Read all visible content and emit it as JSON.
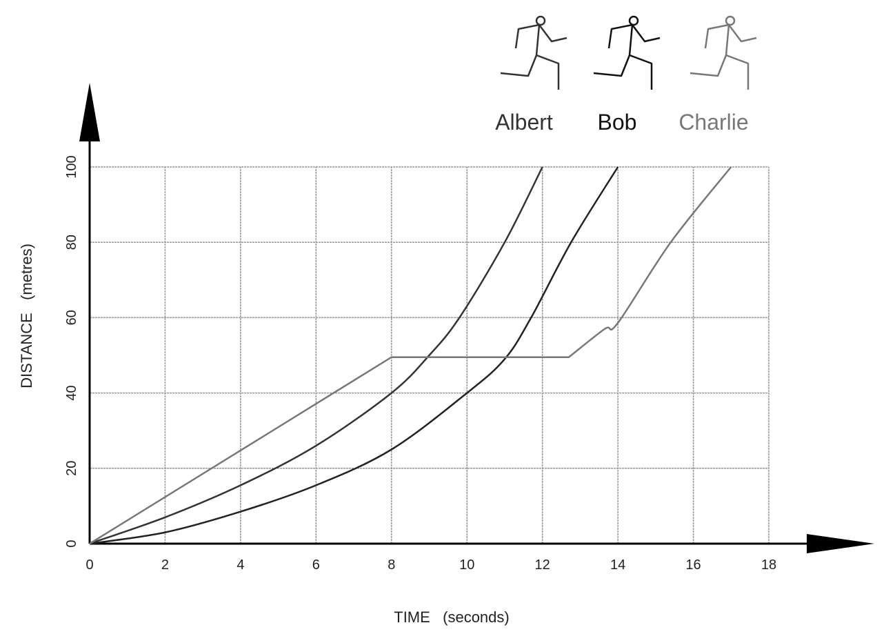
{
  "chart_data": {
    "type": "line",
    "title": "",
    "xlabel": "TIME   (seconds)",
    "ylabel": "DISTANCE   (metres)",
    "xlim": [
      0,
      18
    ],
    "ylim": [
      0,
      100
    ],
    "xticks": [
      "0",
      "2",
      "4",
      "6",
      "8",
      "10",
      "12",
      "14",
      "16",
      "18"
    ],
    "yticks": [
      "0",
      "20",
      "40",
      "60",
      "80",
      "100"
    ],
    "grid": true,
    "legend_position": "top-right",
    "series": [
      {
        "name": "Albert",
        "color": "#333333",
        "label_color": "#333333",
        "x": [
          0,
          2,
          4,
          6,
          8,
          9,
          9.8,
          11,
          12
        ],
        "y": [
          0,
          7,
          15.5,
          26,
          40,
          50,
          60,
          80,
          100
        ]
      },
      {
        "name": "Bob",
        "color": "#222222",
        "label_color": "#111111",
        "x": [
          0,
          2,
          4,
          6,
          8,
          10,
          11,
          11.7,
          12.76,
          14
        ],
        "y": [
          0,
          3,
          8.5,
          15.5,
          25,
          40,
          49,
          60,
          80,
          100
        ]
      },
      {
        "name": "Charlie",
        "color": "#777777",
        "label_color": "#777777",
        "x": [
          0,
          8,
          12.7,
          13.65,
          14,
          15.4,
          17
        ],
        "y": [
          0,
          49.5,
          49.5,
          57,
          58.6,
          80,
          100
        ]
      }
    ]
  }
}
